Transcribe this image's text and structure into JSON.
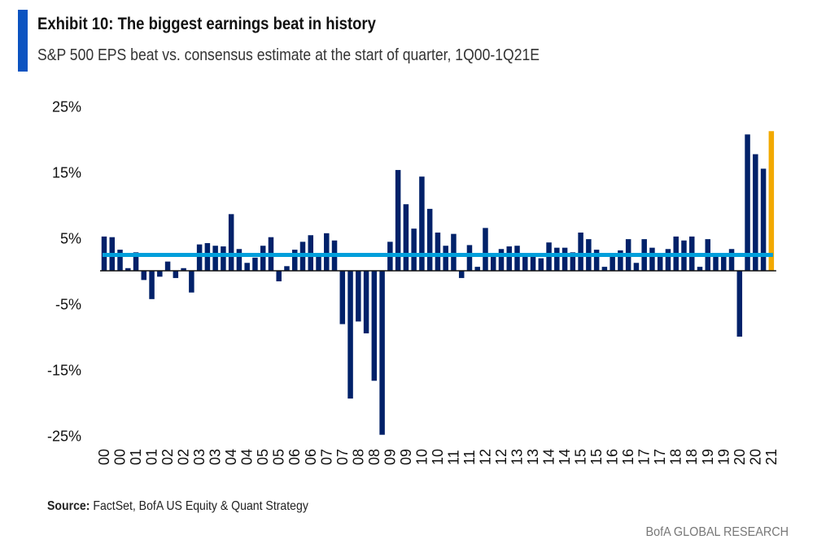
{
  "header": {
    "title": "Exhibit 10: The biggest earnings beat in history",
    "subtitle": "S&P 500 EPS beat vs. consensus estimate at the start of quarter, 1Q00-1Q21E"
  },
  "footer": {
    "source_label": "Source:",
    "source_text": " FactSet, BofA US Equity & Quant Strategy",
    "brand": "BofA GLOBAL RESEARCH"
  },
  "chart_data": {
    "type": "bar",
    "title": "",
    "xlabel": "",
    "ylabel": "",
    "ylim": [
      -25,
      25
    ],
    "y_ticks": [
      25,
      15,
      5,
      -5,
      -15,
      -25
    ],
    "y_tick_labels": [
      "25%",
      "15%",
      "5%",
      "-5%",
      "-15%",
      "-25%"
    ],
    "x_tick_labels": [
      "00",
      "00",
      "01",
      "01",
      "02",
      "02",
      "03",
      "03",
      "04",
      "04",
      "05",
      "05",
      "06",
      "06",
      "07",
      "07",
      "08",
      "08",
      "09",
      "09",
      "10",
      "10",
      "11",
      "11",
      "12",
      "12",
      "13",
      "13",
      "14",
      "14",
      "15",
      "15",
      "16",
      "16",
      "17",
      "17",
      "18",
      "18",
      "19",
      "19",
      "20",
      "20",
      "21"
    ],
    "grid": false,
    "legend": "none",
    "values": [
      5.2,
      5.1,
      3.2,
      0.4,
      2.8,
      -1.4,
      -4.3,
      -0.9,
      1.4,
      -1.1,
      0.4,
      -3.3,
      4.0,
      4.2,
      3.8,
      3.7,
      8.6,
      3.3,
      1.2,
      2.0,
      3.8,
      5.1,
      -1.6,
      0.7,
      3.2,
      4.4,
      5.4,
      2.4,
      5.7,
      4.6,
      -8.1,
      -19.4,
      -7.7,
      -9.5,
      -16.7,
      -24.9,
      4.4,
      15.3,
      10.1,
      6.4,
      14.3,
      9.4,
      5.8,
      3.8,
      5.6,
      -1.1,
      3.9,
      0.6,
      6.5,
      2.5,
      3.3,
      3.7,
      3.8,
      2.6,
      2.5,
      1.9,
      4.3,
      3.5,
      3.5,
      2.8,
      5.8,
      4.8,
      3.2,
      0.6,
      2.5,
      3.1,
      4.8,
      1.2,
      4.8,
      3.5,
      2.5,
      3.3,
      5.2,
      4.6,
      5.2,
      0.6,
      4.8,
      2.5,
      2.3,
      3.3,
      -10.0,
      20.7,
      17.7,
      15.5,
      21.2
    ],
    "highlight_last_estimate": true,
    "average_line": 2.4,
    "colors": {
      "bar": "#012169",
      "estimate_bar": "#F2A900",
      "average_line": "#009FDB",
      "accent": "#0B53C1"
    }
  }
}
